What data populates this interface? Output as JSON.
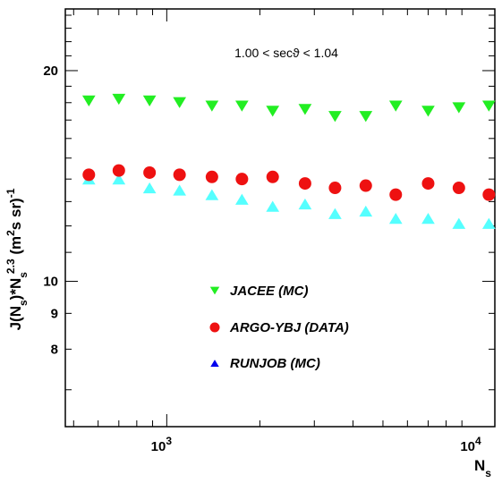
{
  "chart_data": {
    "type": "scatter",
    "xlabel": "N_s",
    "ylabel": "J(N_s)*N_s^2.3 (m^2 s sr)^-1",
    "x_scale": "log",
    "y_scale": "log",
    "xlim": [
      470,
      11500
    ],
    "ylim": [
      6.2,
      24.5
    ],
    "grid": false,
    "legend_placement": "bottom-center",
    "annotation": "1.00 < secϑ < 1.04",
    "x_tick_labels": [
      "10^3",
      "10^4"
    ],
    "y_tick_labels": [
      "20",
      "10",
      "9",
      "8"
    ],
    "colors": {
      "JACEE (MC)": "#22ee22",
      "ARGO-YBJ (DATA)": "#ee1111",
      "RUNJOB (MC)": "#55ffff",
      "RUNJOB legend marker": "#0000ee"
    },
    "series": [
      {
        "name": "JACEE (MC)",
        "marker": "triangle-down",
        "x": [
          560,
          700,
          880,
          1100,
          1400,
          1750,
          2200,
          2800,
          3500,
          4400,
          5500,
          7000,
          8800,
          11000
        ],
        "y": [
          18.1,
          18.2,
          18.1,
          18.0,
          17.8,
          17.8,
          17.5,
          17.6,
          17.2,
          17.2,
          17.8,
          17.5,
          17.7,
          17.8
        ]
      },
      {
        "name": "ARGO-YBJ (DATA)",
        "marker": "circle",
        "x": [
          560,
          700,
          880,
          1100,
          1400,
          1750,
          2200,
          2800,
          3500,
          4400,
          5500,
          7000,
          8800,
          11000
        ],
        "y": [
          14.2,
          14.4,
          14.3,
          14.2,
          14.1,
          14.0,
          14.1,
          13.8,
          13.6,
          13.7,
          13.3,
          13.8,
          13.6,
          13.3
        ]
      },
      {
        "name": "RUNJOB (MC)",
        "marker": "triangle-up",
        "x": [
          560,
          700,
          880,
          1100,
          1400,
          1750,
          2200,
          2800,
          3500,
          4400,
          5500,
          7000,
          8800,
          11000
        ],
        "y": [
          14.0,
          14.0,
          13.6,
          13.5,
          13.3,
          13.1,
          12.8,
          12.9,
          12.5,
          12.6,
          12.3,
          12.3,
          12.1,
          12.1
        ]
      }
    ]
  }
}
